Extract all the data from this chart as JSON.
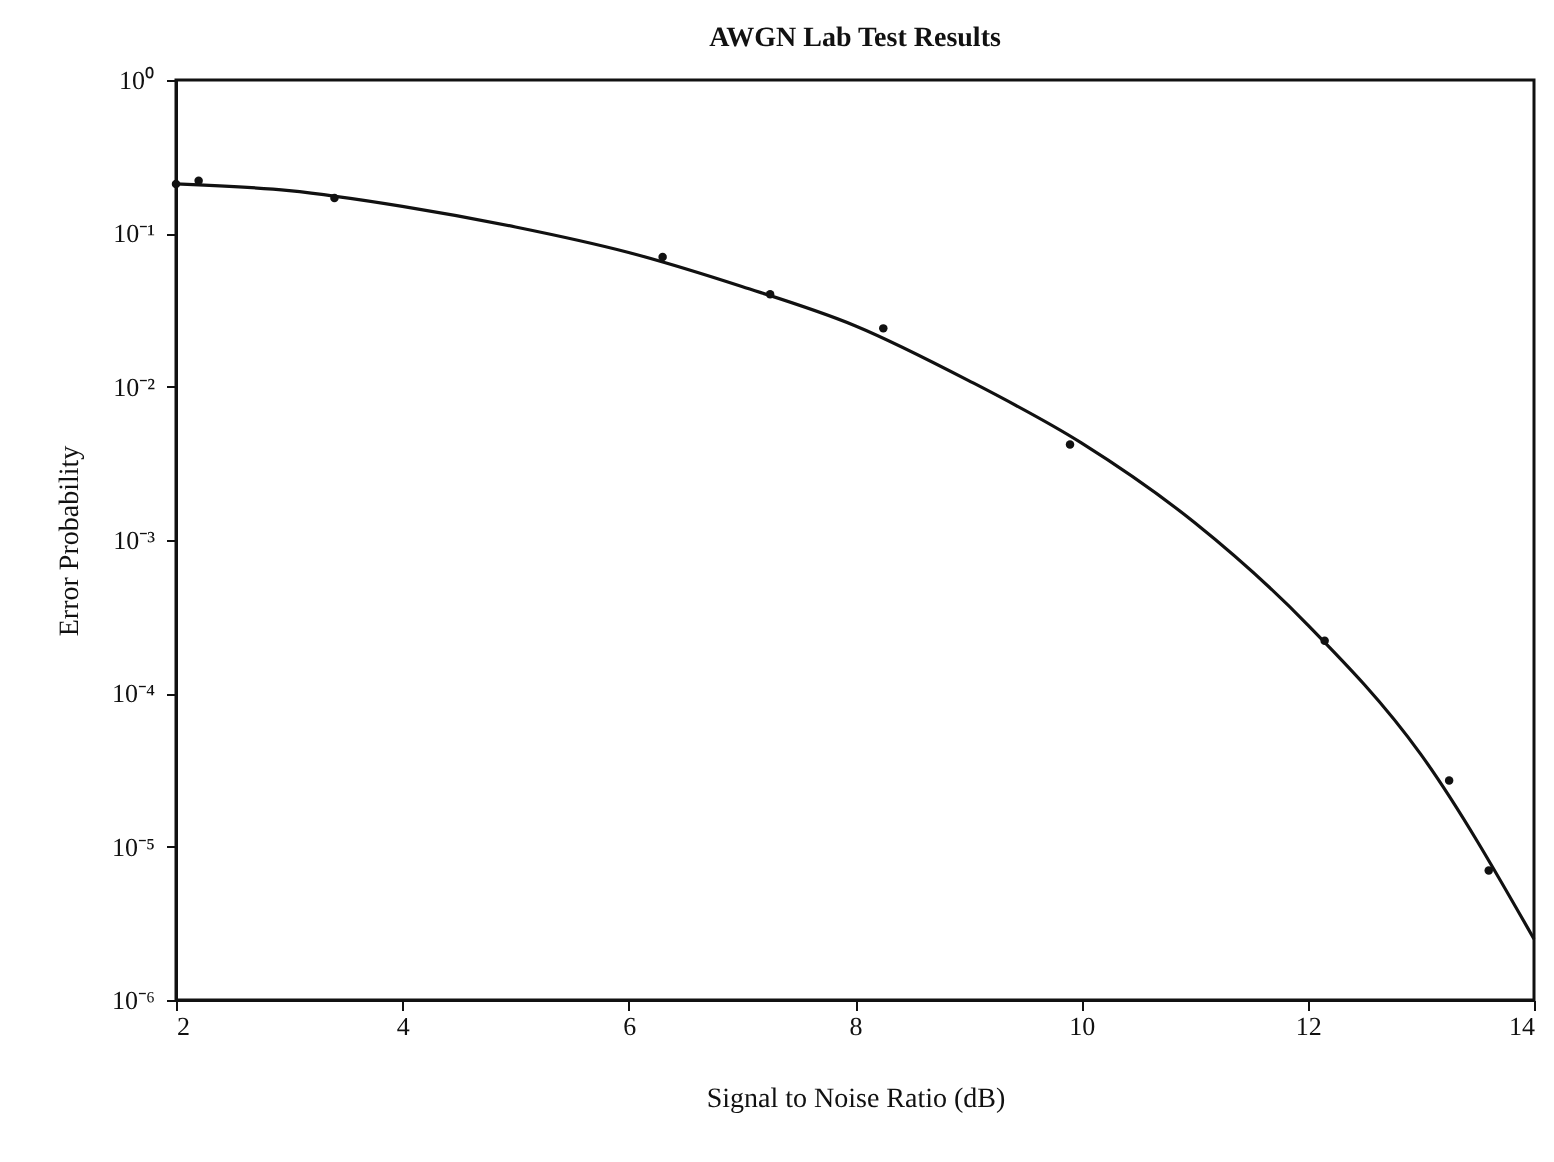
{
  "chart_data": {
    "type": "scatter",
    "title": "AWGN Lab Test Results",
    "xlabel": "Signal to Noise Ratio (dB)",
    "ylabel": "Error Probability",
    "log": "y",
    "grid": false,
    "xlim": [
      2,
      14
    ],
    "xticks": [
      2,
      4,
      6,
      8,
      10,
      12,
      14
    ],
    "ylim": [
      1e-06,
      1
    ],
    "yticks": [
      {
        "value": 1,
        "label": "10⁰"
      },
      {
        "value": 0.1,
        "label": "10⁻¹"
      },
      {
        "value": 0.01,
        "label": "10⁻²"
      },
      {
        "value": 0.001,
        "label": "10⁻³"
      },
      {
        "value": 0.0001,
        "label": "10⁻⁴"
      },
      {
        "value": 1e-05,
        "label": "10⁻⁵"
      },
      {
        "value": 1e-06,
        "label": "10⁻⁶"
      }
    ],
    "series": [
      {
        "type": "line",
        "color": "#111111",
        "line_style": "solid",
        "marker": "none",
        "x": [
          2,
          3,
          4,
          5,
          6,
          7,
          8,
          9,
          10,
          11,
          12,
          13,
          14
        ],
        "values": [
          0.21,
          0.19,
          0.15,
          0.11,
          0.075,
          0.045,
          0.025,
          0.011,
          0.0043,
          0.0013,
          0.00028,
          4e-05,
          2.5e-06
        ]
      },
      {
        "color": "#111111",
        "marker": "circle",
        "x": [
          2.0,
          2.2,
          3.4,
          6.3,
          7.25,
          8.25,
          9.9,
          12.15,
          13.25,
          13.6
        ],
        "values": [
          0.21,
          0.22,
          0.17,
          0.07,
          0.04,
          0.024,
          0.0042,
          0.00022,
          2.7e-05,
          7e-06
        ]
      }
    ]
  }
}
